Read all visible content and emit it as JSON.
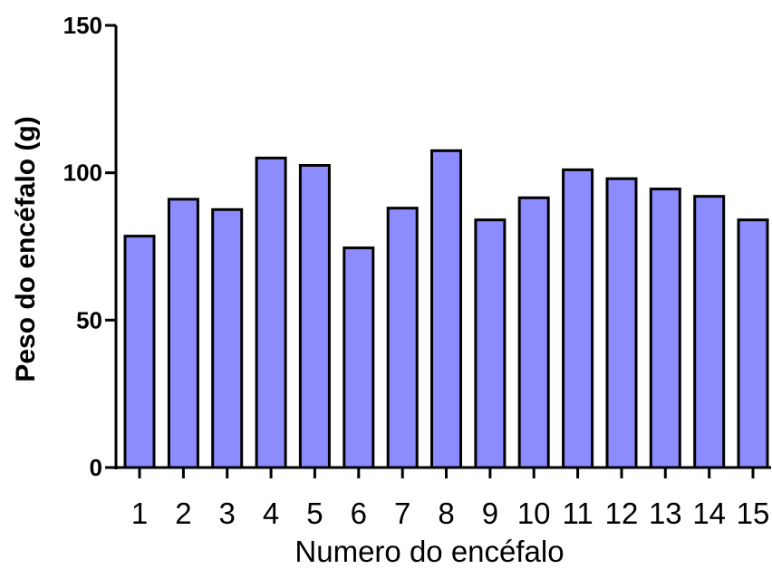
{
  "chart_data": {
    "type": "bar",
    "categories": [
      "1",
      "2",
      "3",
      "4",
      "5",
      "6",
      "7",
      "8",
      "9",
      "10",
      "11",
      "12",
      "13",
      "14",
      "15"
    ],
    "values": [
      78.5,
      91,
      87.5,
      105,
      102.5,
      74.5,
      88,
      107.5,
      84,
      91.5,
      101,
      98,
      94.5,
      92,
      84
    ],
    "xlabel": "Numero do encéfalo",
    "ylabel": "Peso do encéfalo (g)",
    "ylim": [
      0,
      150
    ],
    "yticks": [
      0,
      50,
      100,
      150
    ],
    "grid": false,
    "bar_color": "#8c8cff",
    "edge_color": "#000000"
  }
}
